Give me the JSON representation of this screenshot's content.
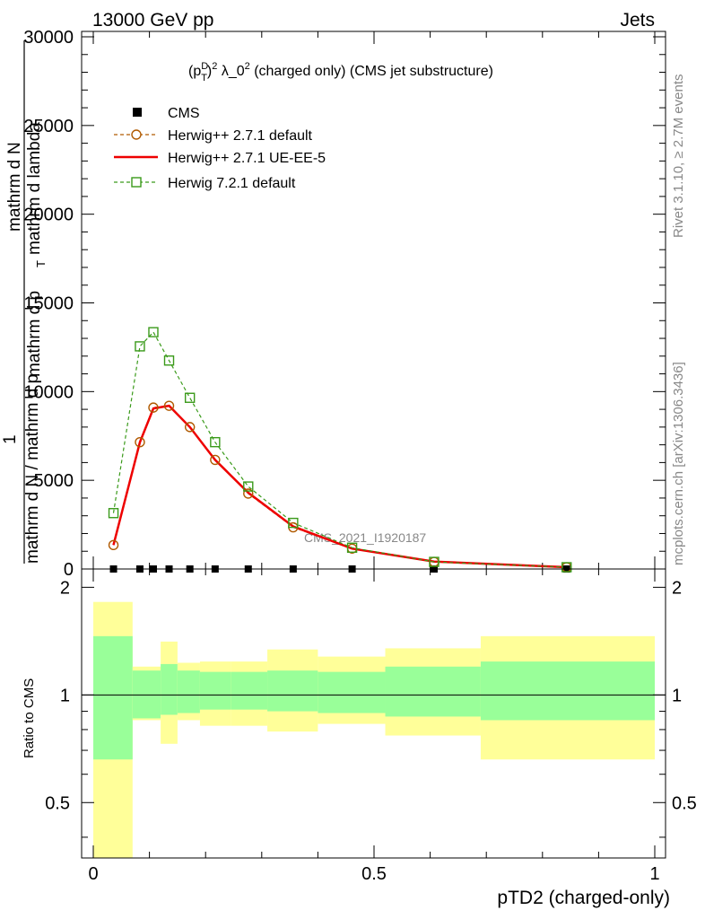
{
  "header": {
    "left": "13000 GeV pp",
    "right": "Jets"
  },
  "side": {
    "rivet": "Rivet 3.1.10, ≥ 2.7M events",
    "mcplots": "mcplots.cern.ch [arXiv:1306.3436]"
  },
  "watermark": "CMS_2021_I1920187",
  "chart_data": [
    {
      "type": "line",
      "title_parts": {
        "p": "(p",
        "sup1": "D",
        "sub": "T",
        "close": ")",
        "sup2": "2",
        "lambda": " λ_0",
        "sup3": "2",
        "rest": " (charged only) (CMS jet substructure)"
      },
      "ylabel_parts": {
        "num_top": "mathrm d",
        "num_N": "N",
        "den_top": "mathrm d p",
        "den_sub": "T",
        "den_rest": " mathrm d lambda",
        "one": "1",
        "bottom": "mathrm d N / mathrm d p"
      },
      "xlim": [
        0,
        1
      ],
      "ylim": [
        0,
        30000
      ],
      "yticks": [
        0,
        5000,
        10000,
        15000,
        20000,
        25000,
        30000
      ],
      "ytick_labels": [
        "0",
        "5000",
        "10000",
        "15000",
        "20000",
        "25000",
        "30000"
      ],
      "series": [
        {
          "name": "CMS",
          "color": "#000000",
          "marker": "square-filled",
          "x": [
            0.036,
            0.083,
            0.107,
            0.135,
            0.172,
            0.217,
            0.276,
            0.356,
            0.461,
            0.607,
            0.843
          ],
          "y": [
            0,
            0,
            0,
            0,
            0,
            0,
            0,
            0,
            0,
            0,
            0
          ]
        },
        {
          "name": "Herwig++ 2.7.1 default",
          "color": "#b05a00",
          "marker": "circle-open",
          "dash": "dashed",
          "x": [
            0.036,
            0.083,
            0.107,
            0.135,
            0.172,
            0.217,
            0.276,
            0.356,
            0.461,
            0.607,
            0.843
          ],
          "y": [
            1350,
            7150,
            9100,
            9200,
            8000,
            6150,
            4250,
            2350,
            1150,
            400,
            100
          ]
        },
        {
          "name": "Herwig++ 2.7.1 UE-EE-5",
          "color": "#ee0000",
          "marker": "none",
          "dash": "solid",
          "x": [
            0.036,
            0.083,
            0.107,
            0.135,
            0.172,
            0.217,
            0.276,
            0.356,
            0.461,
            0.607,
            0.843
          ],
          "y": [
            1350,
            7150,
            9050,
            9200,
            8000,
            6150,
            4300,
            2400,
            1150,
            420,
            100
          ]
        },
        {
          "name": "Herwig 7.2.1 default",
          "color": "#3a9a1a",
          "marker": "square-open",
          "dash": "dashed",
          "x": [
            0.036,
            0.083,
            0.107,
            0.135,
            0.172,
            0.217,
            0.276,
            0.356,
            0.461,
            0.607,
            0.843
          ],
          "y": [
            3150,
            12550,
            13350,
            11750,
            9650,
            7150,
            4650,
            2600,
            1200,
            400,
            100
          ]
        }
      ]
    },
    {
      "type": "area",
      "ylabel": "Ratio to CMS",
      "xlabel": "pTD2 (charged-only)",
      "xlim": [
        0,
        1
      ],
      "ylim": [
        0.35,
        2.25
      ],
      "yticks": [
        0.5,
        1,
        2
      ],
      "ytick_labels": [
        "0.5",
        "1",
        "2"
      ],
      "xticks": [
        0,
        0.5,
        1
      ],
      "xtick_labels": [
        "0",
        "0.5",
        "1"
      ],
      "bins": [
        {
          "lo": 0.0,
          "hi": 0.07,
          "inner": [
            0.66,
            1.46
          ],
          "outer": [
            0.35,
            1.82
          ]
        },
        {
          "lo": 0.07,
          "hi": 0.12,
          "inner": [
            0.86,
            1.17
          ],
          "outer": [
            0.85,
            1.2
          ]
        },
        {
          "lo": 0.12,
          "hi": 0.15,
          "inner": [
            0.88,
            1.22
          ],
          "outer": [
            0.73,
            1.41
          ]
        },
        {
          "lo": 0.15,
          "hi": 0.19,
          "inner": [
            0.89,
            1.17
          ],
          "outer": [
            0.85,
            1.23
          ]
        },
        {
          "lo": 0.19,
          "hi": 0.245,
          "inner": [
            0.91,
            1.16
          ],
          "outer": [
            0.82,
            1.24
          ]
        },
        {
          "lo": 0.245,
          "hi": 0.31,
          "inner": [
            0.91,
            1.16
          ],
          "outer": [
            0.82,
            1.24
          ]
        },
        {
          "lo": 0.31,
          "hi": 0.4,
          "inner": [
            0.9,
            1.17
          ],
          "outer": [
            0.79,
            1.34
          ]
        },
        {
          "lo": 0.4,
          "hi": 0.52,
          "inner": [
            0.89,
            1.16
          ],
          "outer": [
            0.83,
            1.28
          ]
        },
        {
          "lo": 0.52,
          "hi": 0.69,
          "inner": [
            0.87,
            1.2
          ],
          "outer": [
            0.77,
            1.35
          ]
        },
        {
          "lo": 0.69,
          "hi": 1.0,
          "inner": [
            0.85,
            1.24
          ],
          "outer": [
            0.66,
            1.46
          ]
        }
      ],
      "colors": {
        "inner": "#99ff99",
        "outer": "#ffff99"
      }
    }
  ]
}
